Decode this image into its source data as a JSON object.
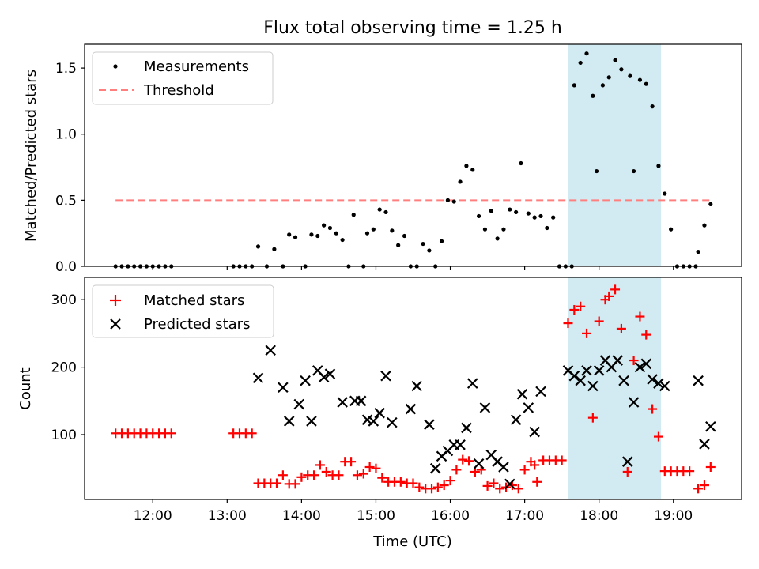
{
  "chart_data": [
    {
      "type": "scatter",
      "title": "Flux total observing time = 1.25 h",
      "xlabel": "",
      "ylabel": "Matched/Predicted stars",
      "ylim": [
        0,
        1.68
      ],
      "xlim": [
        "11:05",
        "19:55"
      ],
      "yticks": [
        "0.0",
        "0.5",
        "1.0",
        "1.5"
      ],
      "legend_position": "top-left",
      "highlight_span": [
        "17:35",
        "18:50"
      ],
      "highlight_color": "#add8e6",
      "threshold": {
        "name": "Threshold",
        "y": 0.5,
        "x_range": [
          "11:30",
          "19:30"
        ],
        "color": "#ff7f7f"
      },
      "series": [
        {
          "name": "Measurements",
          "color": "#000000",
          "points": [
            [
              "11:30",
              0
            ],
            [
              "11:35",
              0
            ],
            [
              "11:40",
              0
            ],
            [
              "11:45",
              0
            ],
            [
              "11:50",
              0
            ],
            [
              "11:55",
              0
            ],
            [
              "12:00",
              0
            ],
            [
              "12:05",
              0
            ],
            [
              "12:10",
              0
            ],
            [
              "12:15",
              0
            ],
            [
              "13:05",
              0
            ],
            [
              "13:10",
              0
            ],
            [
              "13:15",
              0
            ],
            [
              "13:20",
              0
            ],
            [
              "13:25",
              0.15
            ],
            [
              "13:32",
              0
            ],
            [
              "13:38",
              0.13
            ],
            [
              "13:45",
              0
            ],
            [
              "13:50",
              0.24
            ],
            [
              "13:55",
              0.22
            ],
            [
              "14:03",
              0
            ],
            [
              "14:08",
              0.24
            ],
            [
              "14:13",
              0.23
            ],
            [
              "14:18",
              0.31
            ],
            [
              "14:23",
              0.29
            ],
            [
              "14:28",
              0.25
            ],
            [
              "14:33",
              0.2
            ],
            [
              "14:38",
              0
            ],
            [
              "14:42",
              0.39
            ],
            [
              "14:50",
              0
            ],
            [
              "14:53",
              0.25
            ],
            [
              "14:58",
              0.28
            ],
            [
              "15:03",
              0.43
            ],
            [
              "15:08",
              0.41
            ],
            [
              "15:13",
              0.27
            ],
            [
              "15:18",
              0.16
            ],
            [
              "15:23",
              0.23
            ],
            [
              "15:28",
              0
            ],
            [
              "15:33",
              0
            ],
            [
              "15:38",
              0.17
            ],
            [
              "15:43",
              0.12
            ],
            [
              "15:48",
              0
            ],
            [
              "15:53",
              0.19
            ],
            [
              "15:58",
              0.5
            ],
            [
              "16:03",
              0.49
            ],
            [
              "16:08",
              0.64
            ],
            [
              "16:13",
              0.76
            ],
            [
              "16:18",
              0.73
            ],
            [
              "16:23",
              0.38
            ],
            [
              "16:28",
              0.28
            ],
            [
              "16:33",
              0.42
            ],
            [
              "16:38",
              0.21
            ],
            [
              "16:43",
              0.28
            ],
            [
              "16:48",
              0.43
            ],
            [
              "16:53",
              0.41
            ],
            [
              "16:57",
              0.78
            ],
            [
              "17:03",
              0.4
            ],
            [
              "17:08",
              0.37
            ],
            [
              "17:13",
              0.38
            ],
            [
              "17:18",
              0.29
            ],
            [
              "17:23",
              0.37
            ],
            [
              "17:28",
              0
            ],
            [
              "17:33",
              0
            ],
            [
              "17:38",
              0
            ],
            [
              "17:40",
              1.37
            ],
            [
              "17:45",
              1.54
            ],
            [
              "17:50",
              1.61
            ],
            [
              "17:55",
              1.29
            ],
            [
              "17:58",
              0.72
            ],
            [
              "18:03",
              1.37
            ],
            [
              "18:08",
              1.43
            ],
            [
              "18:13",
              1.56
            ],
            [
              "18:18",
              1.49
            ],
            [
              "18:25",
              1.44
            ],
            [
              "18:28",
              0.72
            ],
            [
              "18:33",
              1.41
            ],
            [
              "18:38",
              1.38
            ],
            [
              "18:43",
              1.21
            ],
            [
              "18:48",
              0.76
            ],
            [
              "18:53",
              0.55
            ],
            [
              "18:58",
              0.28
            ],
            [
              "19:03",
              0
            ],
            [
              "19:08",
              0
            ],
            [
              "19:13",
              0
            ],
            [
              "19:18",
              0
            ],
            [
              "19:20",
              0.11
            ],
            [
              "19:25",
              0.31
            ],
            [
              "19:30",
              0.47
            ]
          ]
        }
      ]
    },
    {
      "type": "scatter",
      "title": "",
      "xlabel": "Time (UTC)",
      "ylabel": "Count",
      "ylim": [
        4,
        333
      ],
      "xlim": [
        "11:05",
        "19:55"
      ],
      "xticks": [
        "12:00",
        "13:00",
        "14:00",
        "15:00",
        "16:00",
        "17:00",
        "18:00",
        "19:00"
      ],
      "yticks": [
        "100",
        "200",
        "300"
      ],
      "legend_position": "top-left",
      "highlight_span": [
        "17:35",
        "18:50"
      ],
      "highlight_color": "#add8e6",
      "series": [
        {
          "name": "Matched stars",
          "marker": "+",
          "color": "#ff0000",
          "points": [
            [
              "11:30",
              102
            ],
            [
              "11:35",
              102
            ],
            [
              "11:40",
              102
            ],
            [
              "11:45",
              102
            ],
            [
              "11:50",
              102
            ],
            [
              "11:55",
              102
            ],
            [
              "12:00",
              102
            ],
            [
              "12:05",
              102
            ],
            [
              "12:10",
              102
            ],
            [
              "12:15",
              102
            ],
            [
              "13:05",
              102
            ],
            [
              "13:10",
              102
            ],
            [
              "13:15",
              102
            ],
            [
              "13:20",
              102
            ],
            [
              "13:25",
              28
            ],
            [
              "13:30",
              28
            ],
            [
              "13:35",
              28
            ],
            [
              "13:40",
              28
            ],
            [
              "13:45",
              40
            ],
            [
              "13:50",
              27
            ],
            [
              "13:55",
              27
            ],
            [
              "14:00",
              37
            ],
            [
              "14:05",
              40
            ],
            [
              "14:10",
              40
            ],
            [
              "14:15",
              55
            ],
            [
              "14:20",
              45
            ],
            [
              "14:25",
              40
            ],
            [
              "14:30",
              40
            ],
            [
              "14:35",
              60
            ],
            [
              "14:40",
              60
            ],
            [
              "14:45",
              40
            ],
            [
              "14:50",
              42
            ],
            [
              "14:55",
              52
            ],
            [
              "15:00",
              50
            ],
            [
              "15:05",
              36
            ],
            [
              "15:10",
              30
            ],
            [
              "15:15",
              30
            ],
            [
              "15:20",
              30
            ],
            [
              "15:25",
              28
            ],
            [
              "15:30",
              28
            ],
            [
              "15:35",
              22
            ],
            [
              "15:40",
              20
            ],
            [
              "15:45",
              20
            ],
            [
              "15:50",
              22
            ],
            [
              "15:55",
              25
            ],
            [
              "16:00",
              32
            ],
            [
              "16:05",
              48
            ],
            [
              "16:10",
              63
            ],
            [
              "16:15",
              61
            ],
            [
              "16:20",
              45
            ],
            [
              "16:25",
              48
            ],
            [
              "16:30",
              24
            ],
            [
              "16:35",
              28
            ],
            [
              "16:40",
              20
            ],
            [
              "16:45",
              22
            ],
            [
              "16:50",
              25
            ],
            [
              "16:55",
              20
            ],
            [
              "17:00",
              48
            ],
            [
              "17:05",
              60
            ],
            [
              "17:08",
              55
            ],
            [
              "17:10",
              30
            ],
            [
              "17:15",
              62
            ],
            [
              "17:20",
              62
            ],
            [
              "17:25",
              62
            ],
            [
              "17:30",
              62
            ],
            [
              "17:35",
              265
            ],
            [
              "17:40",
              285
            ],
            [
              "17:45",
              290
            ],
            [
              "17:50",
              250
            ],
            [
              "17:55",
              125
            ],
            [
              "18:00",
              268
            ],
            [
              "18:05",
              300
            ],
            [
              "18:08",
              305
            ],
            [
              "18:13",
              315
            ],
            [
              "18:18",
              257
            ],
            [
              "18:23",
              45
            ],
            [
              "18:28",
              210
            ],
            [
              "18:33",
              275
            ],
            [
              "18:38",
              248
            ],
            [
              "18:43",
              138
            ],
            [
              "18:48",
              97
            ],
            [
              "18:53",
              46
            ],
            [
              "18:58",
              46
            ],
            [
              "19:03",
              46
            ],
            [
              "19:08",
              46
            ],
            [
              "19:13",
              46
            ],
            [
              "19:20",
              20
            ],
            [
              "19:25",
              25
            ],
            [
              "19:30",
              52
            ]
          ]
        },
        {
          "name": "Predicted stars",
          "marker": "x",
          "color": "#000000",
          "points": [
            [
              "13:25",
              184
            ],
            [
              "13:35",
              225
            ],
            [
              "13:45",
              170
            ],
            [
              "13:50",
              120
            ],
            [
              "13:58",
              145
            ],
            [
              "14:03",
              180
            ],
            [
              "14:08",
              120
            ],
            [
              "14:13",
              195
            ],
            [
              "14:18",
              185
            ],
            [
              "14:23",
              190
            ],
            [
              "14:33",
              148
            ],
            [
              "14:43",
              150
            ],
            [
              "14:48",
              150
            ],
            [
              "14:53",
              122
            ],
            [
              "14:58",
              120
            ],
            [
              "15:03",
              132
            ],
            [
              "15:08",
              187
            ],
            [
              "15:13",
              118
            ],
            [
              "15:28",
              138
            ],
            [
              "15:33",
              172
            ],
            [
              "15:43",
              115
            ],
            [
              "15:48",
              50
            ],
            [
              "15:53",
              68
            ],
            [
              "15:58",
              76
            ],
            [
              "16:03",
              85
            ],
            [
              "16:08",
              85
            ],
            [
              "16:13",
              110
            ],
            [
              "16:18",
              176
            ],
            [
              "16:23",
              57
            ],
            [
              "16:28",
              140
            ],
            [
              "16:33",
              70
            ],
            [
              "16:38",
              60
            ],
            [
              "16:43",
              52
            ],
            [
              "16:48",
              27
            ],
            [
              "16:53",
              122
            ],
            [
              "16:58",
              160
            ],
            [
              "17:03",
              140
            ],
            [
              "17:08",
              104
            ],
            [
              "17:13",
              164
            ],
            [
              "17:35",
              195
            ],
            [
              "17:40",
              187
            ],
            [
              "17:45",
              180
            ],
            [
              "17:50",
              195
            ],
            [
              "17:55",
              172
            ],
            [
              "18:00",
              195
            ],
            [
              "18:05",
              210
            ],
            [
              "18:10",
              200
            ],
            [
              "18:15",
              210
            ],
            [
              "18:20",
              180
            ],
            [
              "18:23",
              60
            ],
            [
              "18:28",
              148
            ],
            [
              "18:33",
              200
            ],
            [
              "18:38",
              205
            ],
            [
              "18:43",
              182
            ],
            [
              "18:48",
              176
            ],
            [
              "18:53",
              172
            ],
            [
              "19:20",
              180
            ],
            [
              "19:25",
              86
            ],
            [
              "19:30",
              112
            ]
          ]
        }
      ]
    }
  ]
}
